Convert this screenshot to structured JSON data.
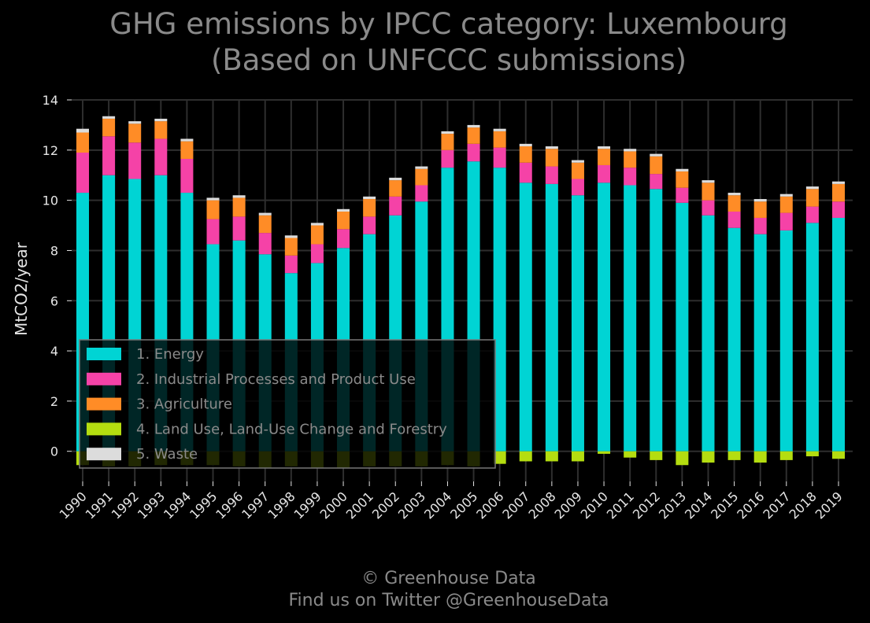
{
  "chart_data": {
    "type": "bar",
    "stacked": true,
    "title": "GHG emissions by IPCC category: Luxembourg",
    "subtitle": "(Based on UNFCCC submissions)",
    "ylabel": "MtCO2/year",
    "xlabel": "",
    "ylim": [
      -1.2,
      14
    ],
    "yticks": [
      0,
      2,
      4,
      6,
      8,
      10,
      12,
      14
    ],
    "grid": true,
    "legend_position": "lower-left",
    "categories": [
      "1990",
      "1991",
      "1992",
      "1993",
      "1994",
      "1995",
      "1996",
      "1997",
      "1998",
      "1999",
      "2000",
      "2001",
      "2002",
      "2003",
      "2004",
      "2005",
      "2006",
      "2007",
      "2008",
      "2009",
      "2010",
      "2011",
      "2012",
      "2013",
      "2014",
      "2015",
      "2016",
      "2017",
      "2018",
      "2019"
    ],
    "series": [
      {
        "name": "1. Energy",
        "color": "#00d4d4",
        "values": [
          10.3,
          11.0,
          10.85,
          11.0,
          10.3,
          8.25,
          8.4,
          7.85,
          7.1,
          7.5,
          8.1,
          8.65,
          9.4,
          9.95,
          11.3,
          11.55,
          11.3,
          10.7,
          10.65,
          10.2,
          10.7,
          10.6,
          10.45,
          9.9,
          9.4,
          8.9,
          8.65,
          8.8,
          9.1,
          9.3
        ]
      },
      {
        "name": "2. Industrial Processes and Product Use",
        "color": "#f542a7",
        "values": [
          1.6,
          1.55,
          1.45,
          1.45,
          1.35,
          1.0,
          0.95,
          0.85,
          0.7,
          0.75,
          0.75,
          0.7,
          0.75,
          0.65,
          0.7,
          0.7,
          0.8,
          0.8,
          0.7,
          0.65,
          0.7,
          0.7,
          0.6,
          0.6,
          0.6,
          0.65,
          0.65,
          0.7,
          0.65,
          0.65
        ]
      },
      {
        "name": "3. Agriculture",
        "color": "#ff8c26",
        "values": [
          0.8,
          0.7,
          0.75,
          0.7,
          0.7,
          0.75,
          0.75,
          0.7,
          0.7,
          0.75,
          0.7,
          0.7,
          0.65,
          0.65,
          0.65,
          0.65,
          0.65,
          0.65,
          0.7,
          0.65,
          0.65,
          0.65,
          0.7,
          0.65,
          0.7,
          0.65,
          0.65,
          0.65,
          0.7,
          0.7
        ]
      },
      {
        "name": "4. Land Use, Land-Use Change and Forestry",
        "color": "#b4dd10",
        "values": [
          -0.55,
          -0.6,
          -0.6,
          -0.55,
          -0.55,
          -0.55,
          -0.6,
          -0.65,
          -0.6,
          -0.65,
          -0.65,
          -0.6,
          -0.6,
          -0.6,
          -0.55,
          -0.6,
          -0.5,
          -0.4,
          -0.4,
          -0.4,
          -0.1,
          -0.25,
          -0.35,
          -0.55,
          -0.45,
          -0.35,
          -0.45,
          -0.35,
          -0.2,
          -0.3
        ]
      },
      {
        "name": "5. Waste",
        "color": "#dcdcdc",
        "values": [
          0.15,
          0.1,
          0.1,
          0.1,
          0.1,
          0.1,
          0.1,
          0.1,
          0.1,
          0.1,
          0.1,
          0.1,
          0.1,
          0.1,
          0.1,
          0.1,
          0.1,
          0.1,
          0.1,
          0.1,
          0.1,
          0.1,
          0.1,
          0.1,
          0.1,
          0.1,
          0.1,
          0.1,
          0.1,
          0.1
        ]
      }
    ]
  },
  "footer": {
    "copyright": "© Greenhouse Data",
    "twitter": "Find us on Twitter @GreenhouseData"
  }
}
